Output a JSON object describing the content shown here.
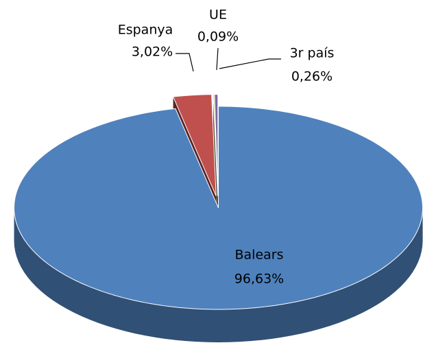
{
  "chart_data": {
    "type": "pie",
    "categories": [
      "Balears",
      "Espanya",
      "UE",
      "3r país"
    ],
    "values": [
      96.63,
      3.02,
      0.09,
      0.26
    ],
    "value_labels": [
      "96,63%",
      "3,02%",
      "0,09%",
      "0,26%"
    ],
    "colors": [
      "#4f81bd",
      "#c0504d",
      "#9bbb59",
      "#8064a2"
    ]
  }
}
